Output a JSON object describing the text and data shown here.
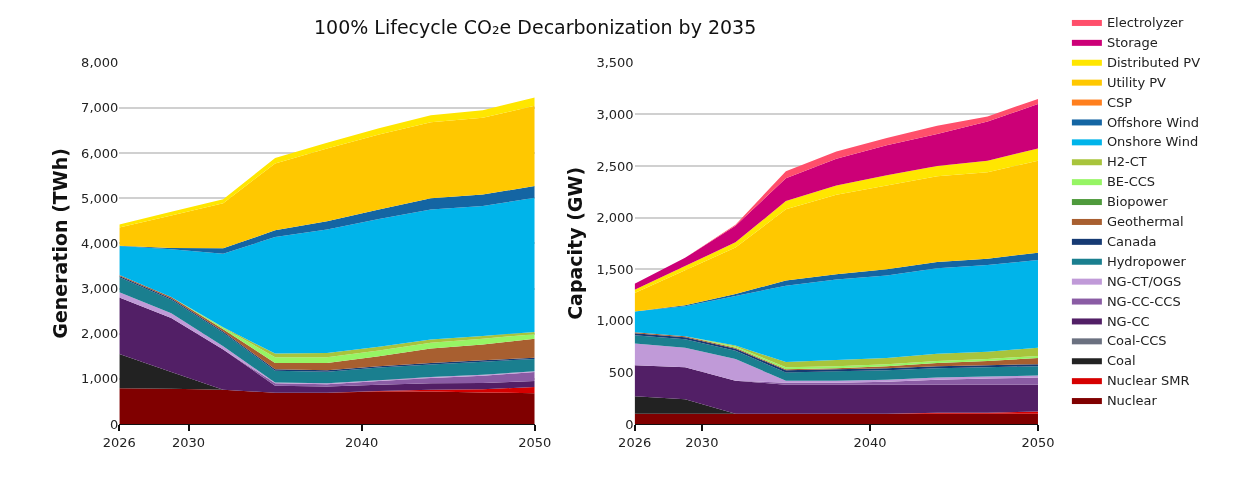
{
  "chart_data": [
    {
      "type": "area",
      "stacked": true,
      "title": "100% Lifecycle CO₂e Decarbonization by 2035",
      "ylabel": "Generation (TWh)",
      "x": [
        2026,
        2029,
        2032,
        2035,
        2038,
        2041,
        2044,
        2047,
        2050
      ],
      "xlim": [
        2026,
        2050
      ],
      "xticks": [
        2026,
        2030,
        2040,
        2050
      ],
      "ylim": [
        0,
        8000
      ],
      "yticks": [
        {
          "value": 0,
          "label": "0"
        },
        {
          "value": 1000,
          "label": "1,000"
        },
        {
          "value": 2000,
          "label": "2,000"
        },
        {
          "value": 3000,
          "label": "3,000"
        },
        {
          "value": 4000,
          "label": "4,000"
        },
        {
          "value": 5000,
          "label": "5,000"
        },
        {
          "value": 6000,
          "label": "6,000"
        },
        {
          "value": 7000,
          "label": "7,000"
        },
        {
          "value": 8000,
          "label": "8,000"
        }
      ],
      "grid": "y",
      "legend": "right",
      "series": [
        {
          "name": "Nuclear",
          "color": "#800000",
          "values": [
            790,
            780,
            760,
            690,
            690,
            720,
            720,
            700,
            680
          ]
        },
        {
          "name": "Nuclear SMR",
          "color": "#d60000",
          "values": [
            0,
            0,
            0,
            0,
            0,
            10,
            40,
            70,
            140
          ]
        },
        {
          "name": "Coal",
          "color": "#222222",
          "values": [
            760,
            370,
            0,
            0,
            0,
            0,
            0,
            0,
            0
          ]
        },
        {
          "name": "NG-CC",
          "color": "#521f66",
          "values": [
            1250,
            1200,
            890,
            160,
            140,
            140,
            140,
            140,
            130
          ]
        },
        {
          "name": "NG-CC-CCS",
          "color": "#8a5ca4",
          "values": [
            0,
            0,
            0,
            50,
            50,
            80,
            120,
            160,
            200
          ]
        },
        {
          "name": "NG-CT/OGS",
          "color": "#c09ad8",
          "values": [
            120,
            100,
            70,
            20,
            20,
            20,
            20,
            20,
            20
          ]
        },
        {
          "name": "Hydropower",
          "color": "#1a7f8f",
          "values": [
            330,
            300,
            300,
            260,
            260,
            280,
            280,
            290,
            270
          ]
        },
        {
          "name": "Canada",
          "color": "#163a73",
          "values": [
            30,
            30,
            30,
            30,
            30,
            30,
            30,
            30,
            30
          ]
        },
        {
          "name": "Geothermal",
          "color": "#a85f30",
          "values": [
            20,
            30,
            50,
            140,
            160,
            220,
            320,
            350,
            420
          ]
        },
        {
          "name": "BE-CCS",
          "color": "#96f564",
          "values": [
            0,
            0,
            30,
            130,
            130,
            130,
            130,
            130,
            100
          ]
        },
        {
          "name": "H2-CT",
          "color": "#a8c43c",
          "values": [
            0,
            0,
            10,
            80,
            90,
            80,
            70,
            60,
            50
          ]
        },
        {
          "name": "Onshore Wind",
          "color": "#00b4ea",
          "values": [
            640,
            1060,
            1630,
            2580,
            2740,
            2830,
            2880,
            2880,
            2970
          ]
        },
        {
          "name": "Offshore Wind",
          "color": "#1465a3",
          "values": [
            10,
            30,
            120,
            150,
            180,
            210,
            250,
            250,
            260
          ]
        },
        {
          "name": "Utility PV",
          "color": "#ffc800",
          "values": [
            400,
            720,
            1000,
            1480,
            1610,
            1660,
            1680,
            1700,
            1780
          ]
        },
        {
          "name": "Distributed PV",
          "color": "#ffe600",
          "values": [
            70,
            80,
            90,
            120,
            130,
            140,
            160,
            170,
            180
          ]
        }
      ]
    },
    {
      "type": "area",
      "stacked": true,
      "ylabel": "Capacity (GW)",
      "x": [
        2026,
        2029,
        2032,
        2035,
        2038,
        2041,
        2044,
        2047,
        2050
      ],
      "xlim": [
        2026,
        2050
      ],
      "xticks": [
        2026,
        2030,
        2040,
        2050
      ],
      "ylim": [
        0,
        3500
      ],
      "yticks": [
        {
          "value": 0,
          "label": "0"
        },
        {
          "value": 500,
          "label": "500"
        },
        {
          "value": 1000,
          "label": "1,000"
        },
        {
          "value": 1500,
          "label": "1,500"
        },
        {
          "value": 2000,
          "label": "2,000"
        },
        {
          "value": 2500,
          "label": "2,500"
        },
        {
          "value": 3000,
          "label": "3,000"
        },
        {
          "value": 3500,
          "label": "3,500"
        }
      ],
      "grid": "y",
      "legend": "right",
      "series": [
        {
          "name": "Nuclear",
          "color": "#800000",
          "values": [
            100,
            100,
            100,
            100,
            100,
            100,
            100,
            100,
            100
          ]
        },
        {
          "name": "Nuclear SMR",
          "color": "#d60000",
          "values": [
            0,
            0,
            0,
            0,
            0,
            0,
            10,
            10,
            20
          ]
        },
        {
          "name": "Coal",
          "color": "#222222",
          "values": [
            170,
            140,
            0,
            0,
            0,
            0,
            0,
            0,
            0
          ]
        },
        {
          "name": "Coal-CCS",
          "color": "#6b7180",
          "values": [
            null,
            null,
            null,
            null,
            null,
            null,
            null,
            null,
            null
          ]
        },
        {
          "name": "NG-CC",
          "color": "#521f66",
          "values": [
            300,
            310,
            320,
            280,
            280,
            280,
            270,
            270,
            260
          ]
        },
        {
          "name": "NG-CC-CCS",
          "color": "#8a5ca4",
          "values": [
            0,
            0,
            0,
            20,
            20,
            30,
            50,
            60,
            70
          ]
        },
        {
          "name": "NG-CT/OGS",
          "color": "#c09ad8",
          "values": [
            210,
            190,
            210,
            20,
            20,
            20,
            20,
            20,
            20
          ]
        },
        {
          "name": "Hydropower",
          "color": "#1a7f8f",
          "values": [
            80,
            80,
            80,
            80,
            90,
            90,
            90,
            90,
            90
          ]
        },
        {
          "name": "Canada",
          "color": "#163a73",
          "values": [
            20,
            20,
            20,
            20,
            20,
            20,
            20,
            20,
            20
          ]
        },
        {
          "name": "Geothermal",
          "color": "#a85f30",
          "values": [
            10,
            10,
            10,
            10,
            10,
            20,
            30,
            40,
            60
          ]
        },
        {
          "name": "Biopower",
          "color": "#4e9a3c",
          "values": [
            null,
            null,
            null,
            null,
            null,
            null,
            null,
            null,
            null
          ]
        },
        {
          "name": "BE-CCS",
          "color": "#96f564",
          "values": [
            0,
            0,
            10,
            20,
            20,
            20,
            20,
            20,
            20
          ]
        },
        {
          "name": "H2-CT",
          "color": "#a8c43c",
          "values": [
            0,
            0,
            10,
            50,
            60,
            60,
            70,
            70,
            80
          ]
        },
        {
          "name": "Onshore Wind",
          "color": "#00b4ea",
          "values": [
            200,
            290,
            480,
            740,
            780,
            800,
            830,
            840,
            850
          ]
        },
        {
          "name": "Offshore Wind",
          "color": "#1465a3",
          "values": [
            0,
            10,
            20,
            50,
            50,
            60,
            60,
            60,
            70
          ]
        },
        {
          "name": "CSP",
          "color": "#ff7f1e",
          "values": [
            null,
            null,
            null,
            null,
            null,
            null,
            null,
            null,
            null
          ]
        },
        {
          "name": "Utility PV",
          "color": "#ffc800",
          "values": [
            180,
            340,
            450,
            690,
            770,
            810,
            830,
            840,
            890
          ]
        },
        {
          "name": "Distributed PV",
          "color": "#ffe600",
          "values": [
            30,
            40,
            50,
            80,
            90,
            100,
            100,
            110,
            120
          ]
        },
        {
          "name": "Storage",
          "color": "#cc0077",
          "values": [
            60,
            80,
            160,
            220,
            260,
            290,
            310,
            380,
            430
          ]
        },
        {
          "name": "Electrolyzer",
          "color": "#ff4f6b",
          "values": [
            0,
            0,
            10,
            70,
            70,
            70,
            80,
            50,
            50
          ]
        }
      ]
    }
  ]
}
